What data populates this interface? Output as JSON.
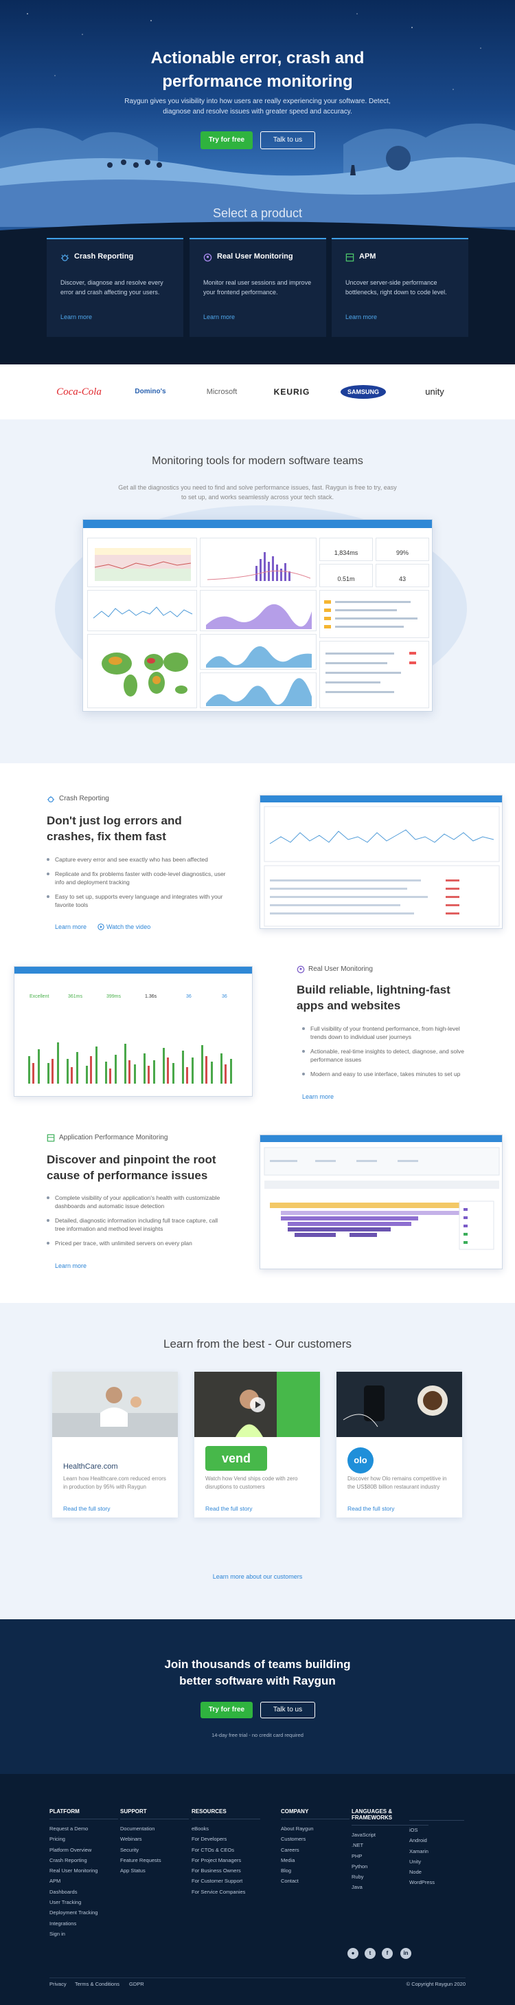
{
  "hero": {
    "title_line1": "Actionable error, crash and",
    "title_line2": "performance monitoring",
    "subtitle": "Raygun gives you visibility into how users are really experiencing your software. Detect, diagnose and resolve issues with greater speed and accuracy.",
    "try_label": "Try for free",
    "talk_label": "Talk to us",
    "select_title": "Select a product"
  },
  "products": [
    {
      "title": "Crash Reporting",
      "desc": "Discover, diagnose and resolve every error and crash affecting your users.",
      "link": "Learn more",
      "icon": "bug-icon"
    },
    {
      "title": "Real User Monitoring",
      "desc": "Monitor real user sessions and improve your frontend performance.",
      "link": "Learn more",
      "icon": "user-monitor-icon"
    },
    {
      "title": "APM",
      "desc": "Uncover server-side performance bottlenecks, right down to code level.",
      "link": "Learn more",
      "icon": "server-icon"
    }
  ],
  "logos": [
    "Coca-Cola",
    "Domino's",
    "Microsoft",
    "KEURIG",
    "SAMSUNG",
    "unity"
  ],
  "monitoring": {
    "title": "Monitoring tools for modern software teams",
    "subtitle": "Get all the diagnostics you need to find and solve performance issues, fast. Raygun is free to try, easy to set up, and works seamlessly across your tech stack.",
    "dash_stats": [
      "1,834ms",
      "99%",
      "0.51m",
      "43"
    ]
  },
  "features": {
    "crash": {
      "tag": "Crash Reporting",
      "heading_line1": "Don't just log errors and",
      "heading_line2": "crashes, fix them fast",
      "bullets": [
        "Capture every error and see exactly who has been affected",
        "Replicate and fix problems faster with code-level diagnostics, user info and deployment tracking",
        "Easy to set up, supports every language and integrates with your favorite tools"
      ],
      "learn": "Learn more",
      "video": "Watch the video"
    },
    "rum": {
      "tag": "Real User Monitoring",
      "heading_line1": "Build reliable, lightning-fast",
      "heading_line2": "apps and websites",
      "bullets": [
        "Full visibility of your frontend performance, from high-level trends down to individual user journeys",
        "Actionable, real-time insights to detect, diagnose, and solve performance issues",
        "Modern and easy to use interface, takes minutes to set up"
      ],
      "learn": "Learn more",
      "stats": [
        "Excellent",
        "361ms",
        "399ms",
        "1.36s",
        "36",
        "36"
      ]
    },
    "apm": {
      "tag": "Application Performance Monitoring",
      "heading_line1": "Discover and pinpoint the root",
      "heading_line2": "cause of performance issues",
      "bullets": [
        "Complete visibility of your application's health with customizable dashboards and automatic issue detection",
        "Detailed, diagnostic information including full trace capture, call tree information and method level insights",
        "Priced per trace, with unlimited servers on every plan"
      ],
      "learn": "Learn more"
    }
  },
  "customers": {
    "title": "Learn from the best - Our customers",
    "cards": [
      {
        "brand": "HealthCare.com",
        "desc": "Learn how Healthcare.com reduced errors in production by 95% with Raygun",
        "link": "Read the full story"
      },
      {
        "brand": "vend",
        "desc": "Watch how Vend ships code with zero disruptions to customers",
        "link": "Read the full story"
      },
      {
        "brand": "olo",
        "desc": "Discover how Olo remains competitive in the US$80B billion restaurant industry",
        "link": "Read the full story"
      }
    ],
    "more": "Learn more about our customers"
  },
  "cta": {
    "title_line1": "Join thousands of teams building",
    "title_line2": "better software with Raygun",
    "try_label": "Try for free",
    "talk_label": "Talk to us",
    "note": "14-day free trial - no credit card required"
  },
  "footer": {
    "columns": [
      {
        "title": "PLATFORM",
        "items": [
          "Request a Demo",
          "Pricing",
          "Platform Overview",
          "Crash Reporting",
          "Real User Monitoring",
          "APM",
          "Dashboards",
          "User Tracking",
          "Deployment Tracking",
          "Integrations",
          "Sign in"
        ]
      },
      {
        "title": "SUPPORT",
        "items": [
          "Documentation",
          "Webinars",
          "Security",
          "Feature Requests",
          "App Status"
        ]
      },
      {
        "title": "RESOURCES",
        "items": [
          "eBooks",
          "For Developers",
          "For CTOs & CEOs",
          "For Project Managers",
          "For Business Owners",
          "For Customer Support",
          "For Service Companies"
        ]
      },
      {
        "title": "COMPANY",
        "items": [
          "About Raygun",
          "Customers",
          "Careers",
          "Media",
          "Blog",
          "Contact"
        ]
      },
      {
        "title": "LANGUAGES & FRAMEWORKS",
        "items": [
          "JavaScript",
          ".NET",
          "PHP",
          "Python",
          "Ruby",
          "Java"
        ]
      },
      {
        "title": "",
        "items": [
          "iOS",
          "Android",
          "Xamarin",
          "Unity",
          "Node",
          "WordPress"
        ]
      }
    ],
    "legal": [
      "Privacy",
      "Terms & Conditions",
      "GDPR"
    ],
    "copyright": "© Copyright Raygun 2020"
  },
  "colors": {
    "accent": "#2fb33f",
    "link": "#2f86d6",
    "navy": "#0e2849"
  }
}
